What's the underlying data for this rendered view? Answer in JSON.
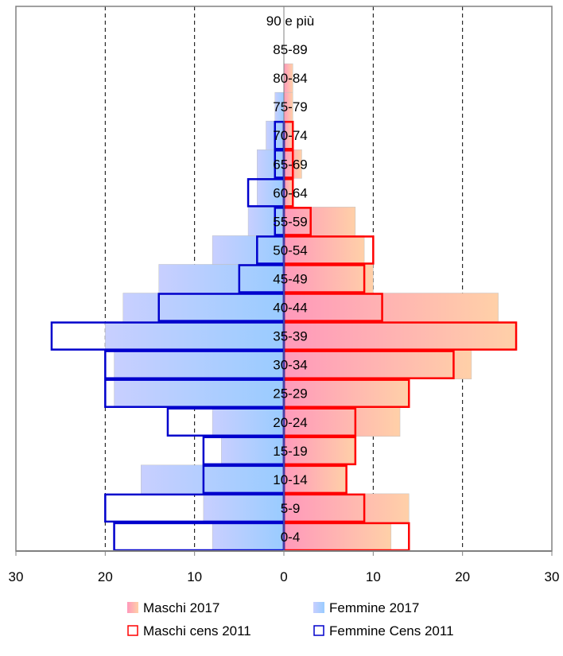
{
  "chart_data": {
    "type": "bar",
    "orientation": "horizontal-population-pyramid",
    "categories": [
      "0-4",
      "5-9",
      "10-14",
      "15-19",
      "20-24",
      "25-29",
      "30-34",
      "35-39",
      "40-44",
      "45-49",
      "50-54",
      "55-59",
      "60-64",
      "65-69",
      "70-74",
      "75-79",
      "80-84",
      "85-89",
      "90 e più"
    ],
    "series": [
      {
        "name": "Maschi 2017",
        "side": "right",
        "style": "filled",
        "values": [
          12,
          14,
          7,
          8,
          13,
          14,
          21,
          26,
          24,
          10,
          9,
          8,
          1,
          2,
          1,
          1,
          1,
          0,
          0
        ]
      },
      {
        "name": "Femmine 2017",
        "side": "left",
        "style": "filled",
        "values": [
          8,
          9,
          16,
          7,
          8,
          19,
          19,
          20,
          18,
          14,
          8,
          4,
          3,
          3,
          2,
          1,
          0,
          0,
          0
        ]
      },
      {
        "name": "Maschi cens 2011",
        "side": "right",
        "style": "outline",
        "values": [
          14,
          9,
          7,
          8,
          8,
          14,
          19,
          26,
          11,
          9,
          10,
          3,
          1,
          1,
          1,
          0,
          0,
          0,
          0
        ]
      },
      {
        "name": "Femmine Cens 2011",
        "side": "left",
        "style": "outline",
        "values": [
          19,
          20,
          9,
          9,
          13,
          20,
          20,
          26,
          14,
          5,
          3,
          1,
          4,
          1,
          1,
          0,
          0,
          0,
          0
        ]
      }
    ],
    "x_ticks": [
      "30",
      "20",
      "10",
      "0",
      "10",
      "20",
      "30"
    ],
    "xlim": [
      -30,
      30
    ],
    "grid": "dashed vertical at 10 and 20",
    "legend": "bottom",
    "colors": {
      "maschi_fill_start": "#ff99bb",
      "maschi_fill_end": "#ffd0a8",
      "femmine_fill_start": "#99ccff",
      "femmine_fill_end": "#c8cfff",
      "maschi_outline": "#ff0000",
      "femmine_outline": "#0000cc"
    }
  }
}
